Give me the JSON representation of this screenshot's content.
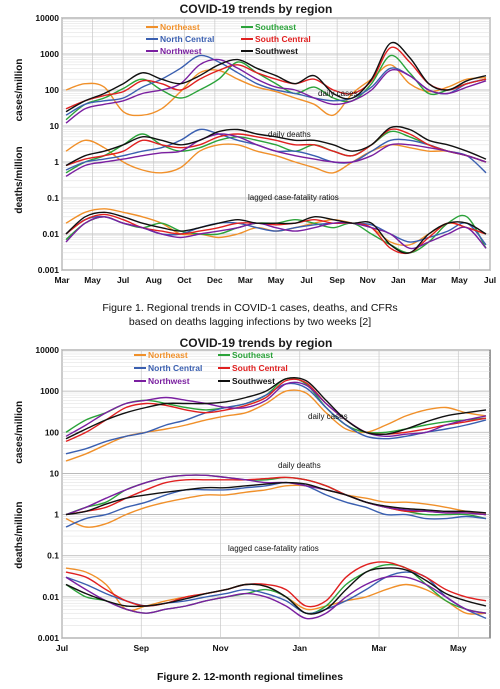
{
  "chart_data": [
    {
      "type": "line",
      "title": "COVID-19 trends by region",
      "ylabel_upper": "cases/million",
      "ylabel_lower": "deaths/million",
      "yscale": "log",
      "ylim": [
        0.001,
        10000
      ],
      "y_ticks": [
        "10000",
        "1000",
        "100",
        "10",
        "1",
        "0.1",
        "0.01",
        "0.001"
      ],
      "x_ticks": [
        "Mar",
        "May",
        "Jul",
        "Aug",
        "Oct",
        "Dec",
        "Mar",
        "May",
        "Jul",
        "Sep",
        "Nov",
        "Jan",
        "Mar",
        "May",
        "Jul"
      ],
      "grid": true,
      "legend_position": "top",
      "annotations": [
        "daily cases",
        "daily deaths",
        "lagged case-fatality ratios"
      ],
      "series": [
        {
          "name": "Northeast",
          "color": "#f0902a",
          "cases": [
            100,
            150,
            120,
            25,
            20,
            30,
            90,
            300,
            350,
            200,
            120,
            90,
            60,
            40,
            20,
            80,
            200,
            500,
            150,
            90,
            120,
            200,
            220
          ],
          "deaths": [
            2,
            4,
            2.5,
            1,
            0.6,
            0.5,
            0.7,
            2,
            3,
            3,
            2,
            1.5,
            1,
            0.7,
            0.5,
            1,
            2,
            3,
            2.5,
            2,
            2,
            1.5,
            1
          ],
          "cfr": [
            0.02,
            0.04,
            0.05,
            0.04,
            0.03,
            0.02,
            0.01,
            0.01,
            0.008,
            0.01,
            0.015,
            0.012,
            0.015,
            0.02,
            0.025,
            0.02,
            0.015,
            0.006,
            0.005,
            0.01,
            0.02,
            0.015,
            0.01
          ]
        },
        {
          "name": "Southeast",
          "color": "#2ba33a",
          "cases": [
            15,
            40,
            60,
            110,
            200,
            100,
            60,
            100,
            200,
            600,
            300,
            150,
            80,
            120,
            60,
            50,
            150,
            900,
            300,
            80,
            100,
            150,
            200
          ],
          "deaths": [
            0.5,
            1,
            1.5,
            3,
            6,
            3,
            2,
            2.5,
            4,
            5,
            4,
            3,
            2,
            3,
            2,
            1.5,
            3,
            7,
            5,
            3,
            2,
            1.5,
            1
          ],
          "cfr": [
            0.007,
            0.02,
            0.03,
            0.02,
            0.015,
            0.02,
            0.012,
            0.01,
            0.01,
            0.015,
            0.02,
            0.02,
            0.025,
            0.02,
            0.015,
            0.02,
            0.01,
            0.005,
            0.003,
            0.006,
            0.02,
            0.03,
            0.004
          ]
        },
        {
          "name": "North Central",
          "color": "#3a5fb0",
          "cases": [
            20,
            40,
            50,
            60,
            120,
            200,
            400,
            900,
            600,
            300,
            150,
            100,
            80,
            60,
            50,
            60,
            120,
            400,
            250,
            100,
            80,
            150,
            200
          ],
          "deaths": [
            0.6,
            1,
            1.2,
            1.5,
            2,
            2.5,
            4,
            8,
            6,
            4,
            3,
            2,
            2,
            1.5,
            1,
            1,
            2,
            4,
            4,
            3,
            2,
            1.5,
            0.5
          ],
          "cfr": [
            0.01,
            0.025,
            0.03,
            0.02,
            0.015,
            0.01,
            0.01,
            0.015,
            0.02,
            0.02,
            0.015,
            0.012,
            0.015,
            0.018,
            0.02,
            0.02,
            0.018,
            0.01,
            0.006,
            0.008,
            0.012,
            0.02,
            0.005
          ]
        },
        {
          "name": "South Central",
          "color": "#e02020",
          "cases": [
            30,
            50,
            70,
            90,
            180,
            150,
            100,
            200,
            350,
            500,
            300,
            200,
            150,
            200,
            100,
            80,
            180,
            1500,
            600,
            150,
            100,
            150,
            200
          ],
          "deaths": [
            0.8,
            1.2,
            1.5,
            2,
            4,
            3,
            2.5,
            3,
            5,
            6,
            5,
            4,
            3,
            3,
            2,
            1.5,
            3,
            8,
            6,
            3,
            2,
            1.5,
            1
          ],
          "cfr": [
            0.01,
            0.025,
            0.035,
            0.025,
            0.015,
            0.012,
            0.01,
            0.012,
            0.015,
            0.02,
            0.02,
            0.018,
            0.02,
            0.025,
            0.02,
            0.02,
            0.015,
            0.004,
            0.003,
            0.008,
            0.02,
            0.015,
            0.01
          ]
        },
        {
          "name": "Northwest",
          "color": "#7a1fa0",
          "cases": [
            12,
            30,
            40,
            50,
            80,
            100,
            150,
            500,
            700,
            400,
            200,
            120,
            100,
            60,
            40,
            50,
            100,
            350,
            250,
            100,
            80,
            120,
            180
          ],
          "deaths": [
            0.4,
            0.8,
            1,
            1.2,
            1.5,
            1.8,
            2,
            4,
            6,
            5,
            3,
            2,
            1.5,
            1.2,
            1,
            1,
            1.5,
            3,
            3,
            2.5,
            2,
            1.5,
            1
          ],
          "cfr": [
            0.006,
            0.02,
            0.03,
            0.02,
            0.015,
            0.01,
            0.008,
            0.01,
            0.012,
            0.015,
            0.02,
            0.015,
            0.012,
            0.015,
            0.02,
            0.02,
            0.015,
            0.01,
            0.004,
            0.006,
            0.01,
            0.015,
            0.004
          ]
        },
        {
          "name": "Southwest",
          "color": "#111111",
          "cases": [
            25,
            50,
            80,
            150,
            300,
            200,
            150,
            250,
            500,
            700,
            400,
            250,
            150,
            250,
            80,
            60,
            200,
            2000,
            800,
            150,
            100,
            180,
            250
          ],
          "deaths": [
            0.8,
            1.5,
            2,
            3,
            5,
            4,
            3,
            4,
            7,
            8,
            6,
            5,
            4,
            4,
            3,
            2,
            3,
            9,
            8,
            4,
            3,
            2,
            1.2
          ],
          "cfr": [
            0.01,
            0.03,
            0.04,
            0.03,
            0.02,
            0.015,
            0.012,
            0.015,
            0.02,
            0.025,
            0.02,
            0.02,
            0.02,
            0.03,
            0.025,
            0.02,
            0.02,
            0.005,
            0.003,
            0.01,
            0.02,
            0.02,
            0.01
          ]
        }
      ]
    },
    {
      "type": "line",
      "title": "COVID-19 trends by region",
      "ylabel_upper": "cases/million",
      "ylabel_lower": "deaths/million",
      "yscale": "log",
      "ylim": [
        0.001,
        10000
      ],
      "y_ticks": [
        "10000",
        "1000",
        "100",
        "10",
        "1",
        "0.1",
        "0.01",
        "0.001"
      ],
      "x_ticks": [
        "Jul",
        "Sep",
        "Nov",
        "Jan",
        "Mar",
        "May"
      ],
      "grid": true,
      "legend_position": "top",
      "annotations": [
        "daily cases",
        "daily deaths",
        "lagged case-fatality ratios"
      ],
      "series": [
        {
          "name": "Northeast",
          "color": "#f0902a",
          "cases": [
            20,
            30,
            50,
            80,
            100,
            120,
            150,
            200,
            250,
            300,
            500,
            1000,
            900,
            300,
            120,
            100,
            150,
            250,
            350,
            400,
            300,
            250
          ],
          "deaths": [
            0.8,
            0.5,
            0.6,
            1,
            1.5,
            2,
            2.5,
            3,
            3,
            3.5,
            4,
            5,
            5,
            4,
            3,
            2.5,
            2,
            2,
            1.8,
            1.5,
            1.2,
            1
          ],
          "cfr": [
            0.05,
            0.04,
            0.02,
            0.005,
            0.006,
            0.008,
            0.01,
            0.012,
            0.015,
            0.02,
            0.018,
            0.01,
            0.005,
            0.006,
            0.008,
            0.01,
            0.015,
            0.02,
            0.015,
            0.008,
            0.004,
            0.004
          ]
        },
        {
          "name": "Southeast",
          "color": "#2ba33a",
          "cases": [
            100,
            200,
            300,
            500,
            600,
            500,
            400,
            350,
            400,
            500,
            800,
            2000,
            1500,
            400,
            150,
            100,
            100,
            120,
            150,
            180,
            200,
            220
          ],
          "deaths": [
            1,
            1.5,
            2,
            4,
            6,
            8,
            9,
            9,
            8,
            7,
            7,
            8,
            7,
            5,
            3,
            2,
            1.5,
            1.2,
            1,
            1,
            1,
            0.8
          ],
          "cfr": [
            0.02,
            0.01,
            0.008,
            0.005,
            0.004,
            0.005,
            0.006,
            0.008,
            0.01,
            0.012,
            0.015,
            0.01,
            0.004,
            0.006,
            0.02,
            0.04,
            0.06,
            0.05,
            0.02,
            0.008,
            0.005,
            0.004
          ]
        },
        {
          "name": "North Central",
          "color": "#3a5fb0",
          "cases": [
            30,
            40,
            60,
            80,
            100,
            150,
            200,
            300,
            400,
            500,
            800,
            1500,
            1200,
            400,
            150,
            80,
            70,
            80,
            100,
            120,
            150,
            200
          ],
          "deaths": [
            0.5,
            0.8,
            1,
            1.5,
            2,
            3,
            4,
            4,
            4,
            4.5,
            5,
            6,
            5,
            3,
            2,
            1.5,
            1,
            1,
            0.8,
            0.8,
            0.9,
            0.8
          ],
          "cfr": [
            0.03,
            0.02,
            0.012,
            0.008,
            0.006,
            0.007,
            0.008,
            0.01,
            0.012,
            0.015,
            0.012,
            0.008,
            0.004,
            0.005,
            0.008,
            0.015,
            0.03,
            0.04,
            0.03,
            0.01,
            0.005,
            0.003
          ]
        },
        {
          "name": "South Central",
          "color": "#e02020",
          "cases": [
            60,
            100,
            200,
            400,
            500,
            450,
            350,
            300,
            350,
            450,
            700,
            1800,
            1600,
            500,
            200,
            100,
            90,
            100,
            120,
            150,
            180,
            220
          ],
          "deaths": [
            1,
            1.2,
            1.5,
            2.5,
            4,
            6,
            7,
            7,
            7,
            7,
            7.5,
            8,
            7,
            5,
            3,
            2,
            1.5,
            1.2,
            1.2,
            1.1,
            1.1,
            1
          ],
          "cfr": [
            0.04,
            0.03,
            0.015,
            0.008,
            0.006,
            0.007,
            0.01,
            0.012,
            0.015,
            0.02,
            0.02,
            0.015,
            0.006,
            0.008,
            0.03,
            0.06,
            0.07,
            0.05,
            0.03,
            0.015,
            0.01,
            0.008
          ]
        },
        {
          "name": "Northwest",
          "color": "#7a1fa0",
          "cases": [
            80,
            150,
            300,
            500,
            600,
            700,
            600,
            500,
            400,
            400,
            600,
            1500,
            1400,
            500,
            200,
            100,
            80,
            90,
            100,
            150,
            200,
            250
          ],
          "deaths": [
            1,
            1.5,
            2.5,
            4,
            6,
            8,
            9,
            9,
            8,
            7,
            6,
            6,
            5,
            4,
            3,
            2,
            1.5,
            1.3,
            1.2,
            1.1,
            1.1,
            1
          ],
          "cfr": [
            0.03,
            0.015,
            0.008,
            0.005,
            0.004,
            0.005,
            0.006,
            0.008,
            0.01,
            0.012,
            0.01,
            0.006,
            0.003,
            0.004,
            0.01,
            0.02,
            0.03,
            0.03,
            0.02,
            0.01,
            0.005,
            0.004
          ]
        },
        {
          "name": "Southwest",
          "color": "#111111",
          "cases": [
            70,
            120,
            200,
            300,
            400,
            500,
            500,
            500,
            550,
            700,
            1000,
            2000,
            1800,
            600,
            200,
            100,
            90,
            120,
            180,
            250,
            300,
            350
          ],
          "deaths": [
            1,
            1.2,
            1.8,
            2.5,
            3,
            3.5,
            4,
            4.5,
            4.5,
            5,
            5.5,
            6,
            5.5,
            4,
            3,
            2,
            1.6,
            1.4,
            1.3,
            1.2,
            1.2,
            1.1
          ],
          "cfr": [
            0.02,
            0.012,
            0.008,
            0.006,
            0.006,
            0.007,
            0.009,
            0.012,
            0.015,
            0.02,
            0.018,
            0.01,
            0.004,
            0.005,
            0.015,
            0.04,
            0.05,
            0.045,
            0.025,
            0.012,
            0.008,
            0.006
          ]
        }
      ]
    }
  ],
  "captions": {
    "fig1_line1": "Figure 1. Regional trends in COVID-1 cases, deaths, and CFRs",
    "fig1_line2": "based on deaths lagging infections by two weeks [2]",
    "fig2": "Figure 2. 12-month regional timelines"
  }
}
